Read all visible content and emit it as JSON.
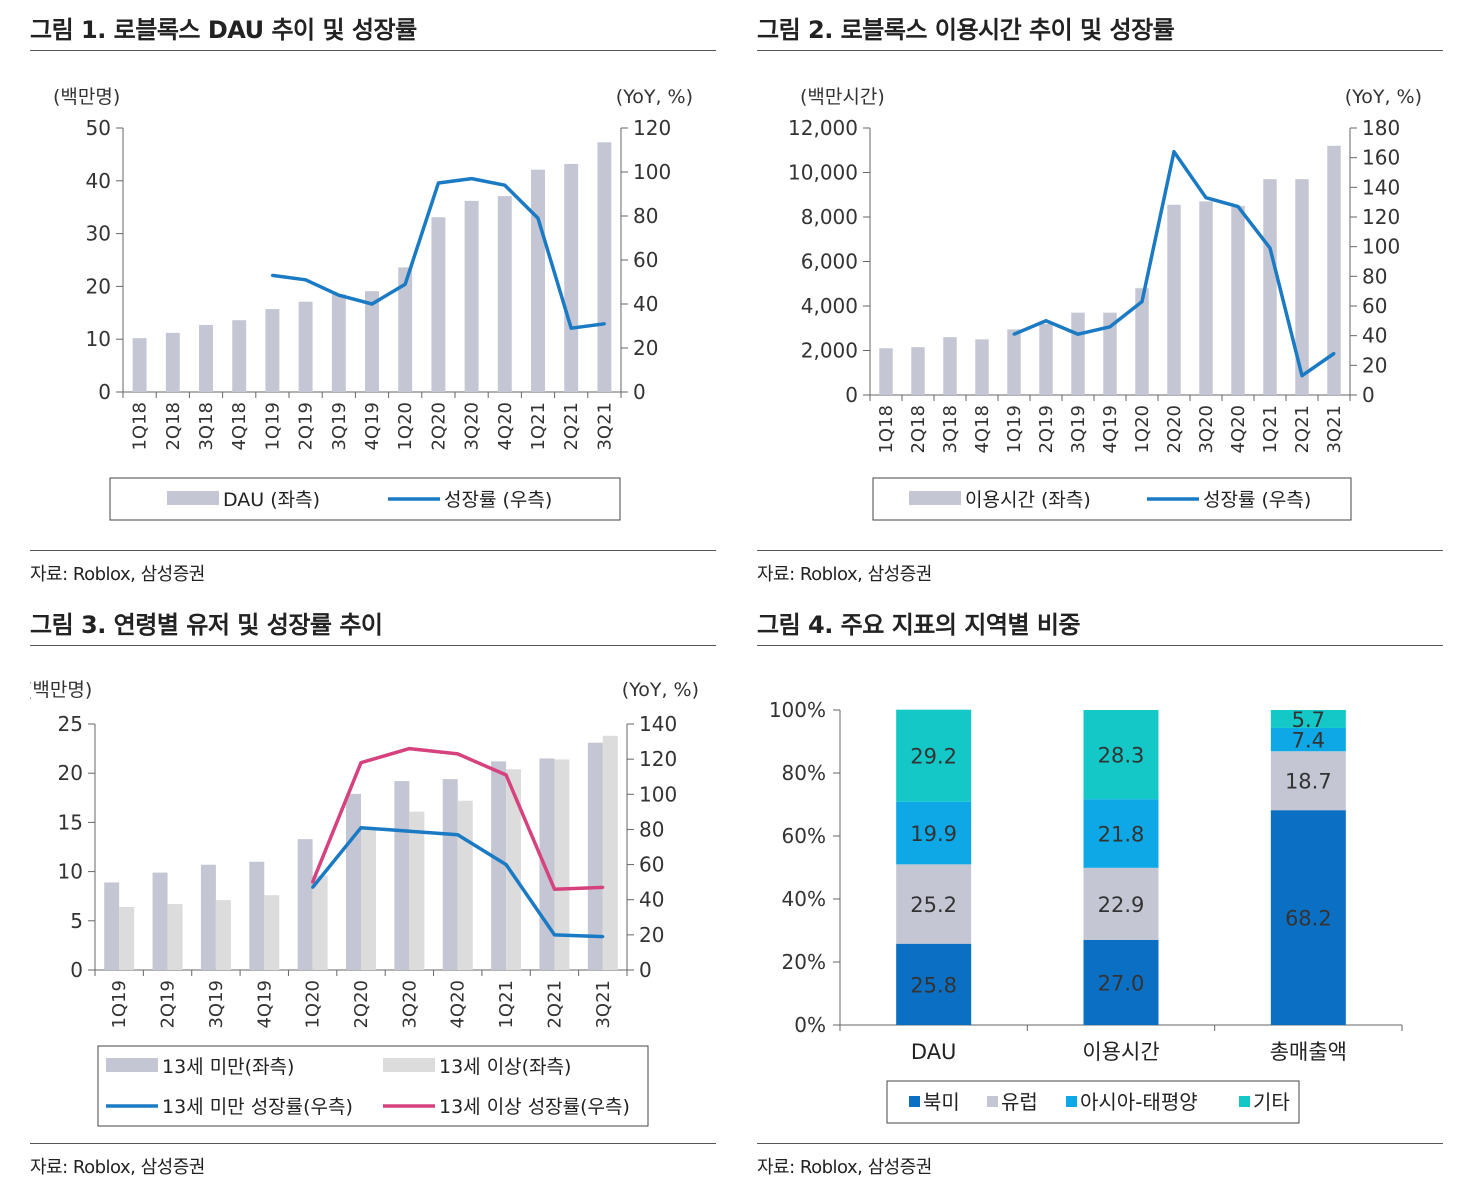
{
  "figures": [
    {
      "title": "그림 1.  로블록스 DAU 추이 및 성장률",
      "source": "자료: Roblox, 삼성증권"
    },
    {
      "title": "그림 2.  로블록스 이용시간 추이 및 성장률",
      "source": "자료: Roblox, 삼성증권"
    },
    {
      "title": "그림 3.  연령별 유저 및 성장률 추이",
      "source": "자료: Roblox, 삼성증권"
    },
    {
      "title": "그림 4.  주요 지표의 지역별 비중",
      "source": "자료: Roblox, 삼성증권"
    }
  ],
  "chart_data": [
    {
      "type": "bar",
      "title": "로블록스 DAU 추이 및 성장률",
      "left_unit": "(백만명)",
      "right_unit": "(YoY, %)",
      "categories": [
        "1Q18",
        "2Q18",
        "3Q18",
        "4Q18",
        "1Q19",
        "2Q19",
        "3Q19",
        "4Q19",
        "1Q20",
        "2Q20",
        "3Q20",
        "4Q20",
        "1Q21",
        "2Q21",
        "3Q21"
      ],
      "left_ylim": [
        0,
        50
      ],
      "left_ticks": [
        "0",
        "10",
        "20",
        "30",
        "40",
        "50"
      ],
      "right_ylim": [
        0,
        120
      ],
      "right_ticks": [
        "0",
        "20",
        "40",
        "60",
        "80",
        "100",
        "120"
      ],
      "series": [
        {
          "name": "DAU (좌측)",
          "kind": "bar",
          "axis": "left",
          "color": "#c4c7d3",
          "values": [
            10.2,
            11.2,
            12.7,
            13.6,
            15.7,
            17.1,
            18.5,
            19.1,
            23.6,
            33.1,
            36.2,
            37.1,
            42.1,
            43.2,
            47.3
          ]
        },
        {
          "name": "성장률 (우측)",
          "kind": "line",
          "axis": "right",
          "color": "#1a7ac4",
          "values": [
            null,
            null,
            null,
            null,
            53,
            51,
            44,
            40,
            49,
            95,
            97,
            94,
            79,
            29,
            31
          ]
        }
      ]
    },
    {
      "type": "bar",
      "title": "로블록스 이용시간 추이 및 성장률",
      "left_unit": "(백만시간)",
      "right_unit": "(YoY, %)",
      "categories": [
        "1Q18",
        "2Q18",
        "3Q18",
        "4Q18",
        "1Q19",
        "2Q19",
        "3Q19",
        "4Q19",
        "1Q20",
        "2Q20",
        "3Q20",
        "4Q20",
        "1Q21",
        "2Q21",
        "3Q21"
      ],
      "left_ylim": [
        0,
        12000
      ],
      "left_ticks": [
        "0",
        "2,000",
        "4,000",
        "6,000",
        "8,000",
        "10,000",
        "12,000"
      ],
      "right_ylim": [
        0,
        180
      ],
      "right_ticks": [
        "0",
        "20",
        "40",
        "60",
        "80",
        "100",
        "120",
        "140",
        "160",
        "180"
      ],
      "series": [
        {
          "name": "이용시간 (좌측)",
          "kind": "bar",
          "axis": "left",
          "color": "#c4c7d3",
          "values": [
            2100,
            2150,
            2600,
            2500,
            2950,
            3200,
            3700,
            3700,
            4800,
            8550,
            8700,
            8500,
            9700,
            9700,
            11200
          ]
        },
        {
          "name": "성장률 (우측)",
          "kind": "line",
          "axis": "right",
          "color": "#1a7ac4",
          "values": [
            null,
            null,
            null,
            null,
            41,
            50,
            41,
            46,
            63,
            164,
            133,
            127,
            99,
            13,
            28
          ]
        }
      ]
    },
    {
      "type": "bar",
      "title": "연령별 유저 및 성장률 추이",
      "left_unit": "(백만명)",
      "right_unit": "(YoY, %)",
      "categories": [
        "1Q19",
        "2Q19",
        "3Q19",
        "4Q19",
        "1Q20",
        "2Q20",
        "3Q20",
        "4Q20",
        "1Q21",
        "2Q21",
        "3Q21"
      ],
      "left_ylim": [
        0,
        25
      ],
      "left_ticks": [
        "0",
        "5",
        "10",
        "15",
        "20",
        "25"
      ],
      "right_ylim": [
        0,
        140
      ],
      "right_ticks": [
        "0",
        "20",
        "40",
        "60",
        "80",
        "100",
        "120",
        "140"
      ],
      "series": [
        {
          "name": "13세 미만(좌측)",
          "kind": "bar",
          "axis": "left",
          "color": "#c4c7d3",
          "values": [
            8.9,
            9.9,
            10.7,
            11.0,
            13.3,
            17.9,
            19.2,
            19.4,
            21.2,
            21.5,
            23.1
          ]
        },
        {
          "name": "13세 이상(좌측)",
          "kind": "bar",
          "axis": "left",
          "color": "#dcdcdc",
          "values": [
            6.4,
            6.7,
            7.1,
            7.6,
            9.6,
            14.5,
            16.1,
            17.2,
            20.4,
            21.4,
            23.8
          ]
        },
        {
          "name": "13세 미만 성장률(우측)",
          "kind": "line",
          "axis": "right",
          "color": "#1a7ac4",
          "values": [
            null,
            null,
            null,
            null,
            47,
            81,
            79,
            77,
            60,
            20,
            19
          ]
        },
        {
          "name": "13세 이상 성장률(우측)",
          "kind": "line",
          "axis": "right",
          "color": "#d6427e",
          "values": [
            null,
            null,
            null,
            null,
            50,
            118,
            126,
            123,
            111,
            46,
            47
          ]
        }
      ]
    },
    {
      "type": "stacked_bar",
      "title": "주요 지표의 지역별 비중",
      "categories": [
        "DAU",
        "이용시간",
        "총매출액"
      ],
      "ylim": [
        0,
        100
      ],
      "y_ticks": [
        "0%",
        "20%",
        "40%",
        "60%",
        "80%",
        "100%"
      ],
      "series": [
        {
          "name": "북미",
          "color": "#0b70c4",
          "values": [
            25.8,
            27.0,
            68.2
          ],
          "labels": [
            "25.8",
            "27.0",
            "68.2"
          ]
        },
        {
          "name": "유럽",
          "color": "#c4c7d3",
          "values": [
            25.2,
            22.9,
            18.7
          ],
          "labels": [
            "25.2",
            "22.9",
            "18.7"
          ]
        },
        {
          "name": "아시아-태평양",
          "color": "#0fa8e6",
          "values": [
            19.9,
            21.8,
            7.4
          ],
          "labels": [
            "19.9",
            "21.8",
            "7.4"
          ]
        },
        {
          "name": "기타",
          "color": "#14c8c8",
          "values": [
            29.2,
            28.3,
            5.7
          ],
          "labels": [
            "29.2",
            "28.3",
            "5.7"
          ]
        }
      ]
    }
  ]
}
